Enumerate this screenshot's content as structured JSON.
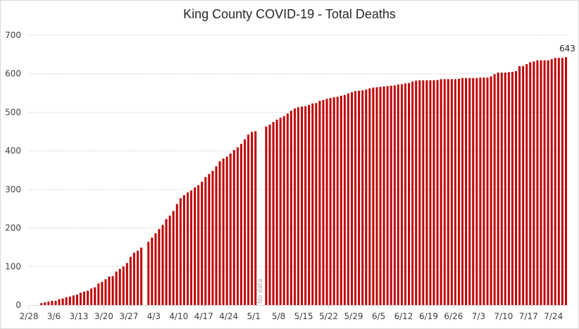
{
  "chart_data": {
    "type": "bar",
    "title": "King County COVID-19 - Total Deaths",
    "xlabel": "",
    "ylabel": "",
    "ylim": [
      0,
      700
    ],
    "yticks": [
      0,
      100,
      200,
      300,
      400,
      500,
      600,
      700
    ],
    "grid": true,
    "legend": "none",
    "bar_color": "#C00000",
    "start_date": "2/28",
    "xtick_labels": [
      "2/28",
      "3/6",
      "3/13",
      "3/20",
      "3/27",
      "4/3",
      "4/10",
      "4/17",
      "4/24",
      "5/1",
      "5/8",
      "5/15",
      "5/22",
      "5/29",
      "6/5",
      "6/12",
      "6/19",
      "6/26",
      "7/3",
      "7/10",
      "7/17",
      "7/24"
    ],
    "annotations": [
      {
        "text": "No data",
        "category": "5/2"
      },
      {
        "text": "643",
        "category": "7/27",
        "type": "data-label"
      }
    ],
    "series": [
      {
        "name": "Total Deaths",
        "categories": [
          "2/28",
          "2/29",
          "3/1",
          "3/2",
          "3/3",
          "3/4",
          "3/5",
          "3/6",
          "3/7",
          "3/8",
          "3/9",
          "3/10",
          "3/11",
          "3/12",
          "3/13",
          "3/14",
          "3/15",
          "3/16",
          "3/17",
          "3/18",
          "3/19",
          "3/20",
          "3/21",
          "3/22",
          "3/23",
          "3/24",
          "3/25",
          "3/26",
          "3/27",
          "3/28",
          "3/29",
          "3/30",
          "3/31",
          "4/1",
          "4/2",
          "4/3",
          "4/4",
          "4/5",
          "4/6",
          "4/7",
          "4/8",
          "4/9",
          "4/10",
          "4/11",
          "4/12",
          "4/13",
          "4/14",
          "4/15",
          "4/16",
          "4/17",
          "4/18",
          "4/19",
          "4/20",
          "4/21",
          "4/22",
          "4/23",
          "4/24",
          "4/25",
          "4/26",
          "4/27",
          "4/28",
          "4/29",
          "4/30",
          "5/1",
          "5/2",
          "5/3",
          "5/4",
          "5/5",
          "5/6",
          "5/7",
          "5/8",
          "5/9",
          "5/10",
          "5/11",
          "5/12",
          "5/13",
          "5/14",
          "5/15",
          "5/16",
          "5/17",
          "5/18",
          "5/19",
          "5/20",
          "5/21",
          "5/22",
          "5/23",
          "5/24",
          "5/25",
          "5/26",
          "5/27",
          "5/28",
          "5/29",
          "5/30",
          "5/31",
          "6/1",
          "6/2",
          "6/3",
          "6/4",
          "6/5",
          "6/6",
          "6/7",
          "6/8",
          "6/9",
          "6/10",
          "6/11",
          "6/12",
          "6/13",
          "6/14",
          "6/15",
          "6/16",
          "6/17",
          "6/18",
          "6/19",
          "6/20",
          "6/21",
          "6/22",
          "6/23",
          "6/24",
          "6/25",
          "6/26",
          "6/27",
          "6/28",
          "6/29",
          "6/30",
          "7/1",
          "7/2",
          "7/3",
          "7/4",
          "7/5",
          "7/6",
          "7/7",
          "7/8",
          "7/9",
          "7/10",
          "7/11",
          "7/12",
          "7/13",
          "7/14",
          "7/15",
          "7/16",
          "7/17",
          "7/18",
          "7/19",
          "7/20",
          "7/21",
          "7/22",
          "7/23",
          "7/24",
          "7/25",
          "7/26",
          "7/27"
        ],
        "values": [
          0,
          0,
          0,
          5,
          7,
          9,
          11,
          11,
          15,
          17,
          20,
          22,
          25,
          27,
          32,
          35,
          37,
          43,
          46,
          56,
          60,
          67,
          74,
          75,
          87,
          94,
          100,
          109,
          125,
          136,
          141,
          149,
          null,
          164,
          175,
          186,
          197,
          208,
          223,
          232,
          244,
          262,
          277,
          285,
          292,
          297,
          305,
          311,
          320,
          332,
          340,
          348,
          360,
          373,
          380,
          385,
          393,
          402,
          409,
          418,
          430,
          442,
          449,
          451,
          null,
          null,
          463,
          468,
          475,
          481,
          486,
          490,
          497,
          504,
          510,
          513,
          515,
          516,
          519,
          523,
          524,
          530,
          532,
          535,
          537,
          539,
          540,
          543,
          545,
          549,
          552,
          555,
          556,
          557,
          559,
          562,
          564,
          565,
          566,
          567,
          568,
          569,
          570,
          572,
          573,
          575,
          576,
          580,
          582,
          583,
          583,
          583,
          583,
          583,
          584,
          586,
          586,
          586,
          586,
          586,
          587,
          589,
          589,
          589,
          589,
          589,
          590,
          590,
          590,
          593,
          599,
          603,
          603,
          603,
          604,
          605,
          607,
          620,
          620,
          625,
          630,
          632,
          635,
          635,
          635,
          635,
          638,
          641,
          641,
          641,
          643
        ]
      }
    ]
  }
}
